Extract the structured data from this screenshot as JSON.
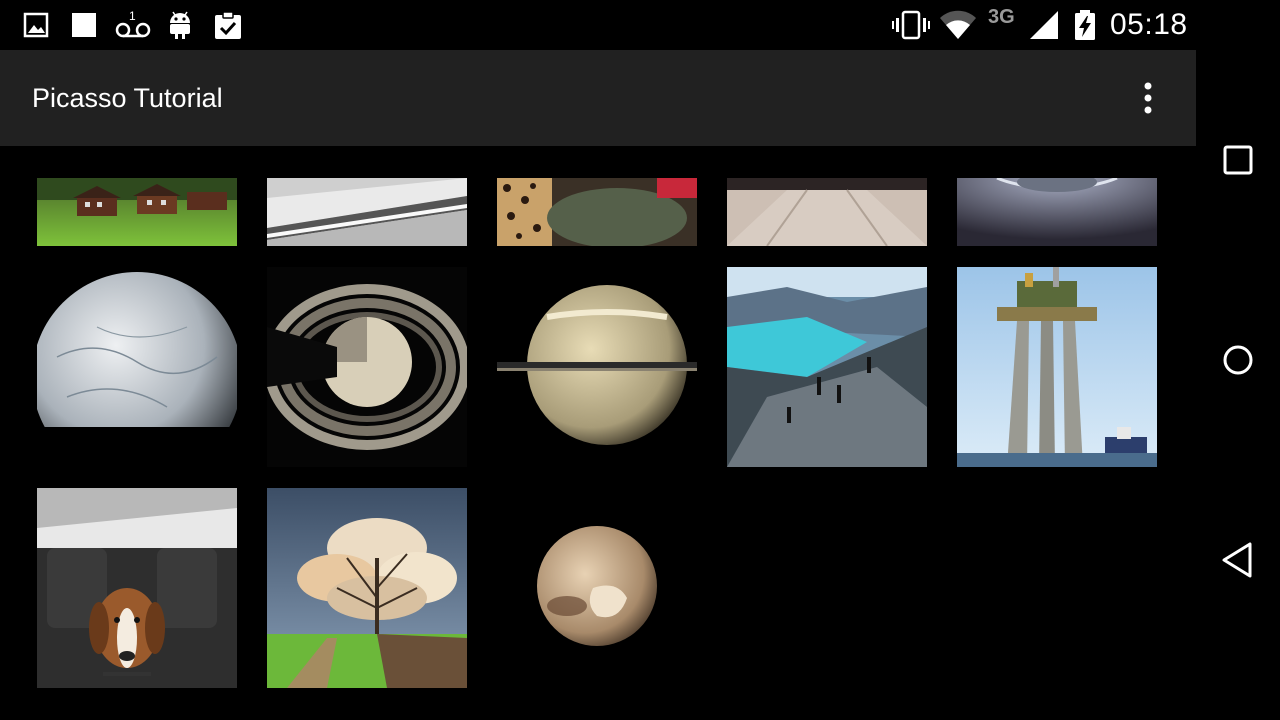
{
  "status_bar": {
    "notification_icons": [
      "gallery-icon",
      "square-icon",
      "voicemail-icon",
      "android-icon",
      "clipboard-check-icon"
    ],
    "voicemail_count": "1",
    "network_type": "3G",
    "time": "05:18"
  },
  "app_bar": {
    "title": "Picasso Tutorial",
    "overflow_icon": "more-vert-icon"
  },
  "grid": {
    "images": [
      "mountain-village-image",
      "window-frame-image",
      "leopard-image",
      "snowy-road-image",
      "planet-horizon-image",
      "enceladus-image",
      "saturn-rings-image",
      "saturn-image",
      "fjord-band-image",
      "oil-platform-image",
      "dog-in-car-image",
      "tree-clouds-image",
      "pluto-image"
    ]
  },
  "nav_bar": {
    "recents_icon": "recents-icon",
    "home_icon": "home-icon",
    "back_icon": "back-icon"
  }
}
